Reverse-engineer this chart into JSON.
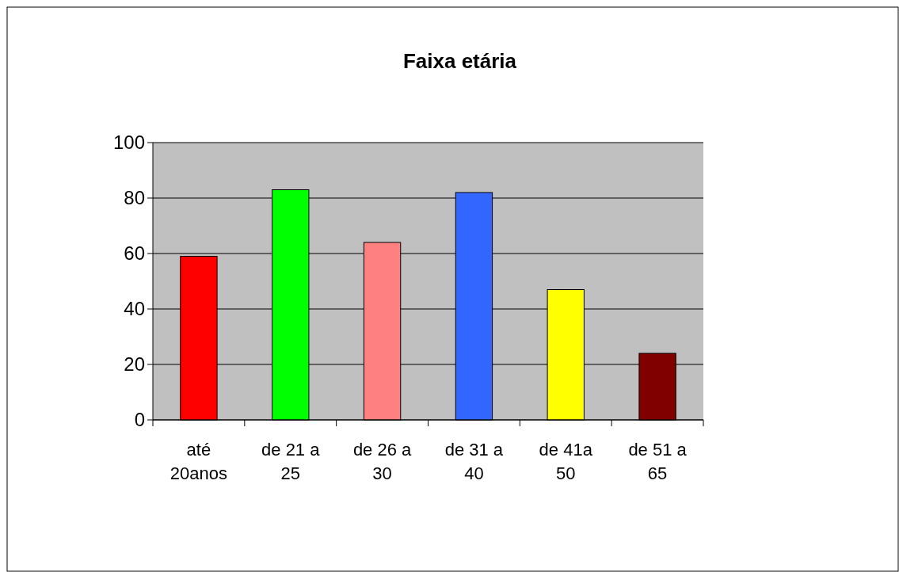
{
  "chart_data": {
    "type": "bar",
    "title": "Faixa etária",
    "categories": [
      "até 20anos",
      "de 21 a 25",
      "de 26 a 30",
      "de 31 a 40",
      "de 41a 50",
      "de 51 a 65"
    ],
    "values": [
      59,
      83,
      64,
      82,
      47,
      24
    ],
    "colors": [
      "#ff0000",
      "#00ff00",
      "#ff8080",
      "#3366ff",
      "#ffff00",
      "#800000"
    ],
    "ylim": [
      0,
      100
    ],
    "yticks": [
      0,
      20,
      40,
      60,
      80,
      100
    ],
    "grid": "y"
  }
}
